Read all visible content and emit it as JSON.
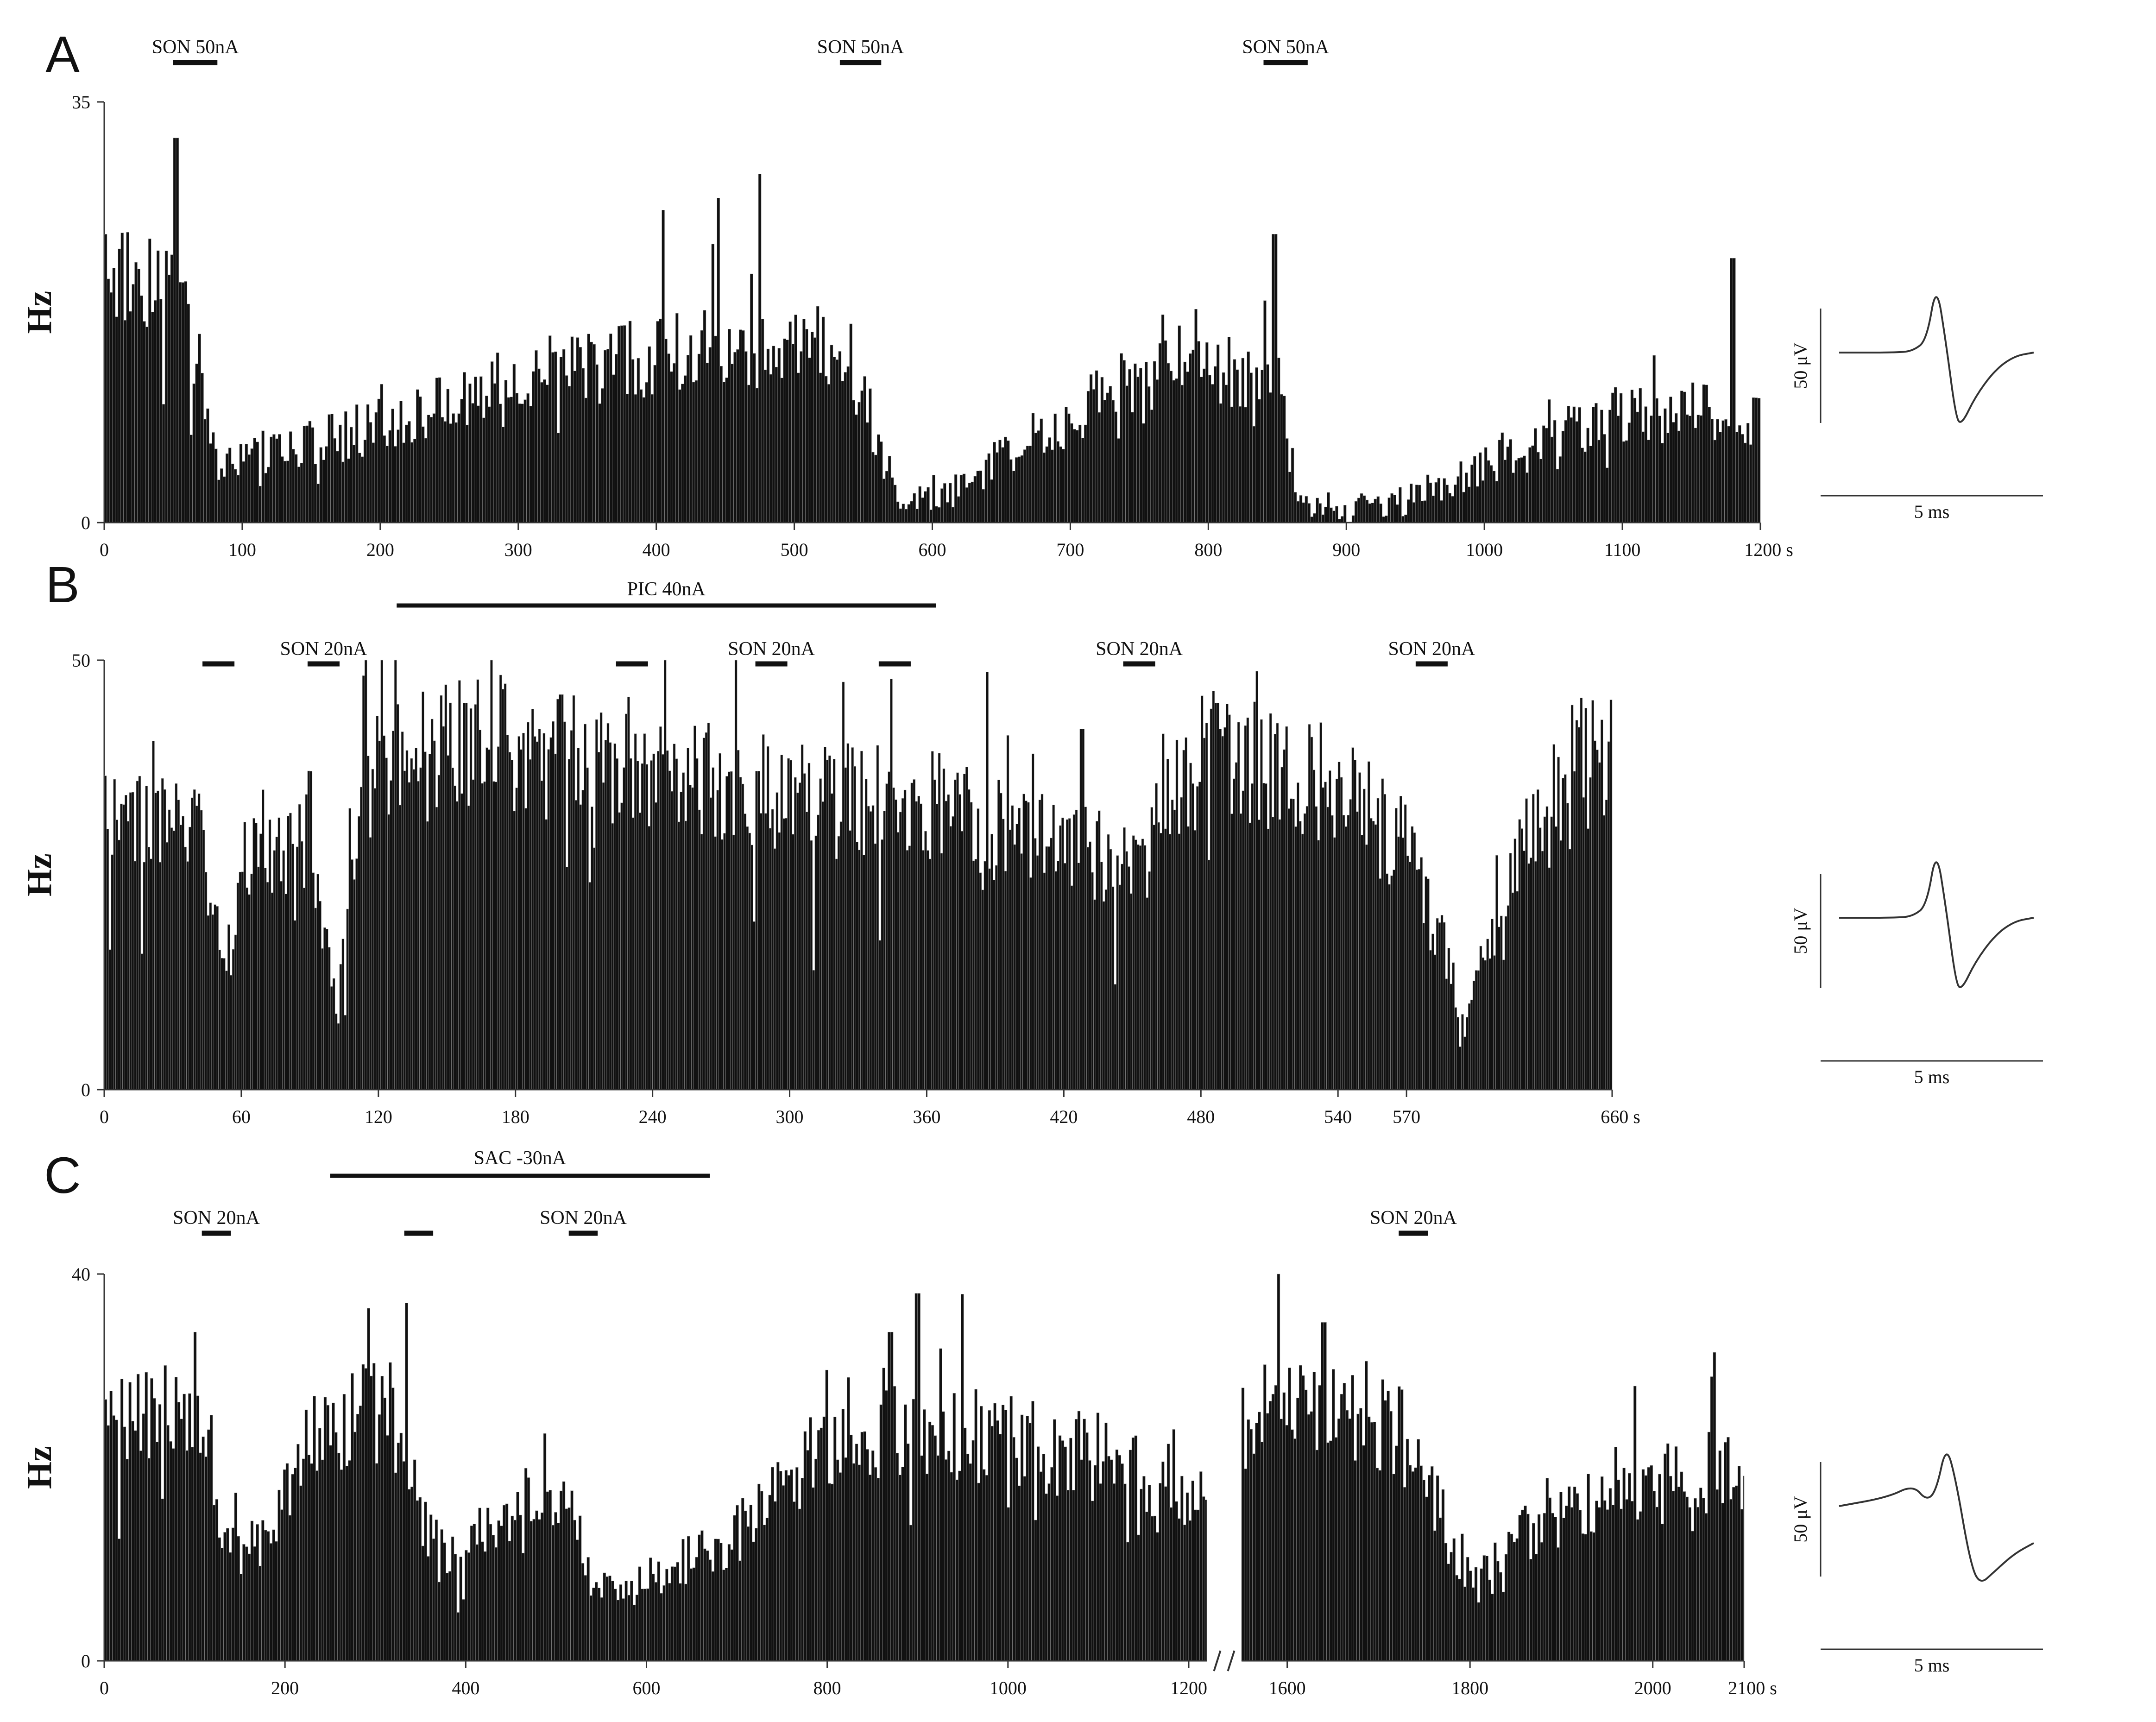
{
  "chart_data": [
    {
      "type": "bar",
      "panel": "A",
      "ylabel": "Hz",
      "ylim": [
        0,
        35
      ],
      "yticks": [
        "0",
        "35"
      ],
      "x_unit": "s",
      "xlim": [
        0,
        1200
      ],
      "xticks": [
        0,
        100,
        200,
        300,
        400,
        500,
        600,
        700,
        800,
        900,
        1000,
        1100,
        1200
      ],
      "bin_s": 2,
      "rate_profile": [
        [
          0,
          22
        ],
        [
          25,
          20
        ],
        [
          50,
          21
        ],
        [
          60,
          18
        ],
        [
          70,
          12
        ],
        [
          80,
          5
        ],
        [
          200,
          8
        ],
        [
          300,
          12
        ],
        [
          400,
          14
        ],
        [
          500,
          15
        ],
        [
          540,
          14
        ],
        [
          560,
          6
        ],
        [
          580,
          2
        ],
        [
          620,
          3
        ],
        [
          660,
          6
        ],
        [
          700,
          9
        ],
        [
          740,
          12
        ],
        [
          800,
          13
        ],
        [
          850,
          12
        ],
        [
          865,
          2
        ],
        [
          900,
          1
        ],
        [
          950,
          2
        ],
        [
          1000,
          5
        ],
        [
          1100,
          9
        ],
        [
          1200,
          9
        ]
      ],
      "peaks": [
        [
          52,
          32
        ],
        [
          475,
          29
        ],
        [
          445,
          27
        ],
        [
          405,
          26
        ],
        [
          848,
          24
        ],
        [
          1180,
          22
        ]
      ],
      "stimuli": [
        {
          "label": "SON 50nA",
          "start": 50,
          "end": 82,
          "row": "top"
        },
        {
          "label": "SON 50nA",
          "start": 533,
          "end": 563,
          "row": "top"
        },
        {
          "label": "SON 50nA",
          "start": 840,
          "end": 872,
          "row": "top"
        }
      ],
      "waveform": {
        "scale_amplitude": "50 μV",
        "scale_time": "5 ms",
        "shape": "A"
      }
    },
    {
      "type": "bar",
      "panel": "B",
      "ylabel": "Hz",
      "ylim": [
        0,
        50
      ],
      "yticks": [
        "0",
        "50"
      ],
      "x_unit": "s",
      "xlim": [
        0,
        660
      ],
      "xticks": [
        0,
        60,
        120,
        180,
        240,
        300,
        360,
        420,
        480,
        540,
        570,
        660
      ],
      "xtick_labels": [
        "0",
        "60",
        "120",
        "180",
        "240",
        "300",
        "360",
        "420",
        "480",
        "540",
        "570",
        "660"
      ],
      "bin_s": 1,
      "rate_profile": [
        [
          0,
          31
        ],
        [
          40,
          30
        ],
        [
          48,
          22
        ],
        [
          53,
          13
        ],
        [
          58,
          22
        ],
        [
          63,
          28
        ],
        [
          90,
          29
        ],
        [
          97,
          17
        ],
        [
          102,
          8
        ],
        [
          107,
          28
        ],
        [
          115,
          36
        ],
        [
          150,
          40
        ],
        [
          200,
          39
        ],
        [
          300,
          34
        ],
        [
          360,
          33
        ],
        [
          420,
          28
        ],
        [
          450,
          27
        ],
        [
          457,
          26
        ],
        [
          462,
          36
        ],
        [
          500,
          38
        ],
        [
          540,
          35
        ],
        [
          570,
          28
        ],
        [
          590,
          14
        ],
        [
          595,
          8
        ],
        [
          600,
          14
        ],
        [
          620,
          27
        ],
        [
          645,
          38
        ],
        [
          660,
          40
        ]
      ],
      "peaks": [
        [
          200,
          46
        ],
        [
          158,
          45
        ],
        [
          487,
          45
        ],
        [
          428,
          42
        ]
      ],
      "stimuli": [
        {
          "label": "PIC 40nA",
          "start": 128,
          "end": 364,
          "row": "long"
        },
        {
          "label": "",
          "start": 43,
          "end": 57,
          "row": "top"
        },
        {
          "label": "SON 20nA",
          "start": 89,
          "end": 103,
          "row": "top"
        },
        {
          "label": "",
          "start": 224,
          "end": 238,
          "row": "top"
        },
        {
          "label": "SON 20nA",
          "start": 285,
          "end": 299,
          "row": "top"
        },
        {
          "label": "",
          "start": 339,
          "end": 353,
          "row": "top"
        },
        {
          "label": "SON 20nA",
          "start": 446,
          "end": 460,
          "row": "top"
        },
        {
          "label": "SON 20nA",
          "start": 574,
          "end": 588,
          "row": "top"
        }
      ],
      "waveform": {
        "scale_amplitude": "50 μV",
        "scale_time": "5 ms",
        "shape": "B"
      }
    },
    {
      "type": "bar",
      "panel": "C",
      "ylabel": "Hz",
      "ylim": [
        0,
        40
      ],
      "yticks": [
        "0",
        "40"
      ],
      "x_unit": "s",
      "x_break": [
        1220,
        1550
      ],
      "xticks_left": [
        0,
        200,
        400,
        600,
        800,
        1000,
        1200
      ],
      "xticks_right": [
        1600,
        1800,
        2000,
        2100
      ],
      "bin_s": 3,
      "segments": [
        {
          "from": 0,
          "to": 1220,
          "rate_profile": [
            [
              0,
              24
            ],
            [
              80,
              25
            ],
            [
              115,
              23
            ],
            [
              130,
              14
            ],
            [
              150,
              11
            ],
            [
              180,
              13
            ],
            [
              210,
              20
            ],
            [
              240,
              24
            ],
            [
              300,
              26
            ],
            [
              335,
              22
            ],
            [
              350,
              16
            ],
            [
              370,
              11
            ],
            [
              450,
              14
            ],
            [
              480,
              18
            ],
            [
              520,
              17
            ],
            [
              540,
              8
            ],
            [
              570,
              7
            ],
            [
              620,
              9
            ],
            [
              700,
              13
            ],
            [
              760,
              18
            ],
            [
              800,
              23
            ],
            [
              900,
              24
            ],
            [
              1000,
              23
            ],
            [
              1100,
              21
            ],
            [
              1200,
              18
            ],
            [
              1220,
              18
            ]
          ]
        },
        {
          "from": 1550,
          "to": 2100,
          "rate_profile": [
            [
              1550,
              25
            ],
            [
              1600,
              27
            ],
            [
              1660,
              27
            ],
            [
              1720,
              24
            ],
            [
              1760,
              17
            ],
            [
              1800,
              8
            ],
            [
              1830,
              9
            ],
            [
              1870,
              14
            ],
            [
              1950,
              17
            ],
            [
              2050,
              19
            ],
            [
              2100,
              20
            ]
          ]
        }
      ],
      "peaks": [
        [
          900,
          38
        ],
        [
          335,
          37
        ],
        [
          1640,
          35
        ],
        [
          870,
          34
        ],
        [
          100,
          34
        ]
      ],
      "stimuli": [
        {
          "label": "SAC -30nA",
          "start": 250,
          "end": 670,
          "row": "long"
        },
        {
          "label": "SON 20nA",
          "start": 108,
          "end": 140,
          "row": "top"
        },
        {
          "label": "",
          "start": 332,
          "end": 364,
          "row": "top"
        },
        {
          "label": "SON 20nA",
          "start": 514,
          "end": 546,
          "row": "top"
        },
        {
          "label": "SON 20nA",
          "start": 1722,
          "end": 1754,
          "row": "top"
        }
      ],
      "waveform": {
        "scale_amplitude": "50 μV",
        "scale_time": "5 ms",
        "shape": "C"
      }
    }
  ]
}
